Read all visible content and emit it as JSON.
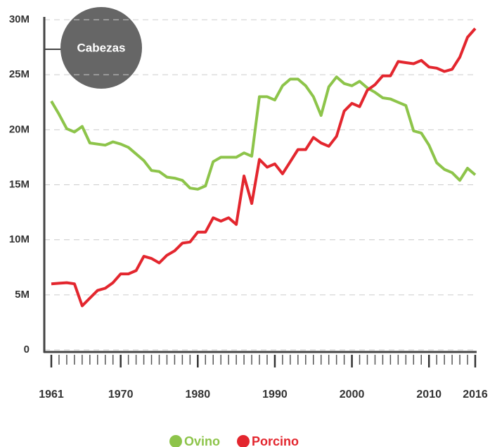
{
  "chart_data": {
    "type": "line",
    "annotation": "Cabezas",
    "x": [
      1961,
      1962,
      1963,
      1964,
      1965,
      1966,
      1967,
      1968,
      1969,
      1970,
      1971,
      1972,
      1973,
      1974,
      1975,
      1976,
      1977,
      1978,
      1979,
      1980,
      1981,
      1982,
      1983,
      1984,
      1985,
      1986,
      1987,
      1988,
      1989,
      1990,
      1991,
      1992,
      1993,
      1994,
      1995,
      1996,
      1997,
      1998,
      1999,
      2000,
      2001,
      2002,
      2003,
      2004,
      2005,
      2006,
      2007,
      2008,
      2009,
      2010,
      2011,
      2012,
      2013,
      2014,
      2015,
      2016
    ],
    "series": [
      {
        "name": "Ovino",
        "color": "#8dc44a",
        "values": [
          22.6,
          21.4,
          20.1,
          19.8,
          20.3,
          18.8,
          18.7,
          18.6,
          18.9,
          18.7,
          18.4,
          17.8,
          17.2,
          16.3,
          16.2,
          15.7,
          15.6,
          15.4,
          14.7,
          14.6,
          14.9,
          17.1,
          17.5,
          17.5,
          17.5,
          17.9,
          17.6,
          23.0,
          23.0,
          22.7,
          24.0,
          24.6,
          24.6,
          24.0,
          23.0,
          21.3,
          23.9,
          24.8,
          24.2,
          24.0,
          24.4,
          23.8,
          23.4,
          22.9,
          22.8,
          22.5,
          22.2,
          19.9,
          19.7,
          18.6,
          17.0,
          16.4,
          16.1,
          15.4,
          16.5,
          15.9
        ]
      },
      {
        "name": "Porcino",
        "color": "#e3262e",
        "values": [
          6.0,
          6.05,
          6.1,
          6.0,
          4.0,
          4.7,
          5.4,
          5.6,
          6.1,
          6.9,
          6.9,
          7.2,
          8.5,
          8.3,
          7.9,
          8.6,
          9.0,
          9.7,
          9.8,
          10.7,
          10.7,
          12.0,
          11.7,
          12.0,
          11.4,
          15.8,
          13.3,
          17.3,
          16.6,
          16.9,
          16.0,
          17.1,
          18.2,
          18.2,
          19.3,
          18.8,
          18.5,
          19.4,
          21.7,
          22.4,
          22.1,
          23.6,
          24.1,
          24.9,
          24.9,
          26.2,
          26.1,
          26.0,
          26.3,
          25.7,
          25.6,
          25.3,
          25.5,
          26.6,
          28.4,
          29.2
        ]
      }
    ],
    "xlim": [
      1961,
      2016
    ],
    "xticks": [
      1961,
      1970,
      1980,
      1990,
      2000,
      2010,
      2016
    ],
    "ylim": [
      0,
      30
    ],
    "yticks": [
      0,
      {
        "value": 5,
        "label": "5M"
      },
      {
        "value": 10,
        "label": "10M"
      },
      {
        "value": 15,
        "label": "15M"
      },
      {
        "value": 20,
        "label": "20M"
      },
      {
        "value": 25,
        "label": "25M"
      },
      {
        "value": 30,
        "label": "30M"
      }
    ],
    "grid": true
  }
}
